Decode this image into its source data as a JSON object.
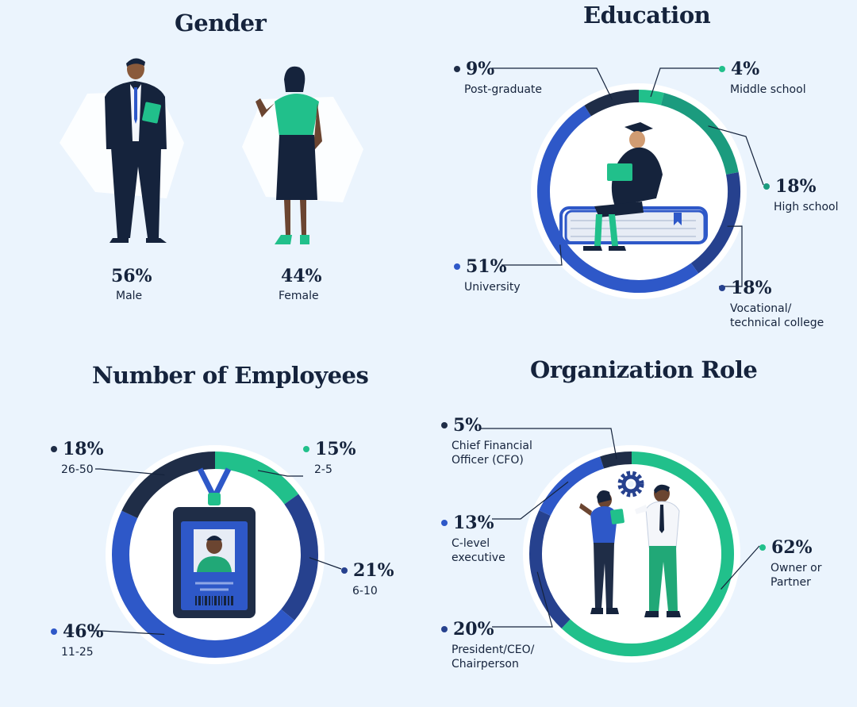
{
  "colors": {
    "navy": "#1f2d47",
    "green": "#21c08b",
    "teal": "#1b9b7e",
    "blue": "#2e58c8",
    "indigo": "#26418e",
    "background": "#ebf4fd"
  },
  "gender": {
    "title": "Gender",
    "male_pct": "56%",
    "male_label": "Male",
    "female_pct": "44%",
    "female_label": "Female"
  },
  "education": {
    "title": "Education",
    "items": [
      {
        "pct": "9%",
        "label": "Post-graduate"
      },
      {
        "pct": "4%",
        "label": "Middle school"
      },
      {
        "pct": "18%",
        "label": "High school"
      },
      {
        "pct": "18%",
        "label": "Vocational/\ntechnical college"
      },
      {
        "pct": "51%",
        "label": "University"
      }
    ]
  },
  "employees": {
    "title": "Number of Employees",
    "items": [
      {
        "pct": "18%",
        "label": "26-50"
      },
      {
        "pct": "15%",
        "label": "2-5"
      },
      {
        "pct": "21%",
        "label": "6-10"
      },
      {
        "pct": "46%",
        "label": "11-25"
      }
    ]
  },
  "role": {
    "title": "Organization Role",
    "items": [
      {
        "pct": "5%",
        "label": "Chief Financial\nOfficer (CFO)"
      },
      {
        "pct": "13%",
        "label": "C-level\nexecutive"
      },
      {
        "pct": "62%",
        "label": "Owner or\nPartner"
      },
      {
        "pct": "20%",
        "label": "President/CEO/\nChairperson"
      }
    ]
  },
  "chart_data": [
    {
      "type": "bar",
      "title": "Gender",
      "categories": [
        "Male",
        "Female"
      ],
      "values": [
        56,
        44
      ]
    },
    {
      "type": "pie",
      "title": "Education",
      "categories": [
        "Middle school",
        "High school",
        "Vocational/technical college",
        "University",
        "Post-graduate"
      ],
      "values": [
        4,
        18,
        18,
        51,
        9
      ],
      "colors": [
        "#21c08b",
        "#1b9b7e",
        "#26418e",
        "#2e58c8",
        "#1f2d47"
      ]
    },
    {
      "type": "pie",
      "title": "Number of Employees",
      "categories": [
        "2-5",
        "6-10",
        "11-25",
        "26-50"
      ],
      "values": [
        15,
        21,
        46,
        18
      ],
      "colors": [
        "#21c08b",
        "#26418e",
        "#2e58c8",
        "#1f2d47"
      ]
    },
    {
      "type": "pie",
      "title": "Organization Role",
      "categories": [
        "Owner or Partner",
        "President/CEO/Chairperson",
        "C-level executive",
        "Chief Financial Officer (CFO)"
      ],
      "values": [
        62,
        20,
        13,
        5
      ],
      "colors": [
        "#21c08b",
        "#26418e",
        "#2e58c8",
        "#1f2d47"
      ]
    }
  ]
}
